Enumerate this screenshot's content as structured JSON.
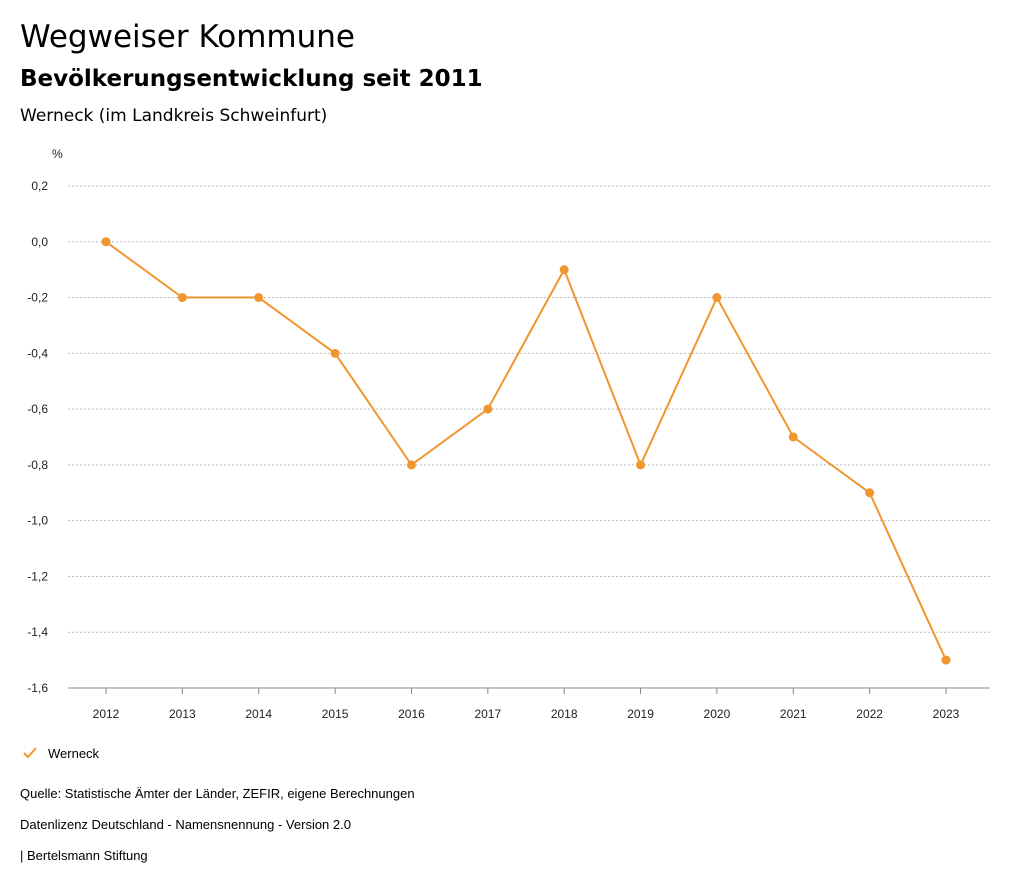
{
  "header": {
    "title": "Wegweiser Kommune",
    "subtitle": "Bevölkerungsentwicklung seit 2011",
    "subtitle2": "Werneck (im Landkreis Schweinfurt)"
  },
  "legend": {
    "label": "Werneck",
    "icon": "check-icon",
    "color": "#f0962e"
  },
  "footer": {
    "source": "Quelle: Statistische Ämter der Länder, ZEFIR, eigene Berechnungen",
    "license": "Datenlizenz Deutschland - Namensnennung - Version 2.0",
    "publisher": "| Bertelsmann Stiftung"
  },
  "chart_data": {
    "type": "line",
    "title": "Bevölkerungsentwicklung seit 2011",
    "ylabel": "%",
    "xlabel": "",
    "ylim": [
      -1.6,
      0.2
    ],
    "yticks": [
      0.2,
      0.0,
      -0.2,
      -0.4,
      -0.6,
      -0.8,
      -1.0,
      -1.2,
      -1.4,
      -1.6
    ],
    "ytick_labels": [
      "0,2",
      "0,0",
      "-0,2",
      "-0,4",
      "-0,6",
      "-0,8",
      "-1,0",
      "-1,2",
      "-1,4",
      "-1,6"
    ],
    "categories": [
      "2012",
      "2013",
      "2014",
      "2015",
      "2016",
      "2017",
      "2018",
      "2019",
      "2020",
      "2021",
      "2022",
      "2023"
    ],
    "series": [
      {
        "name": "Werneck",
        "color": "#f0962e",
        "values": [
          0.0,
          -0.2,
          -0.2,
          -0.4,
          -0.8,
          -0.6,
          -0.1,
          -0.8,
          -0.2,
          -0.7,
          -0.9,
          -1.5
        ]
      }
    ],
    "grid": true,
    "legend": "bottom-left"
  }
}
